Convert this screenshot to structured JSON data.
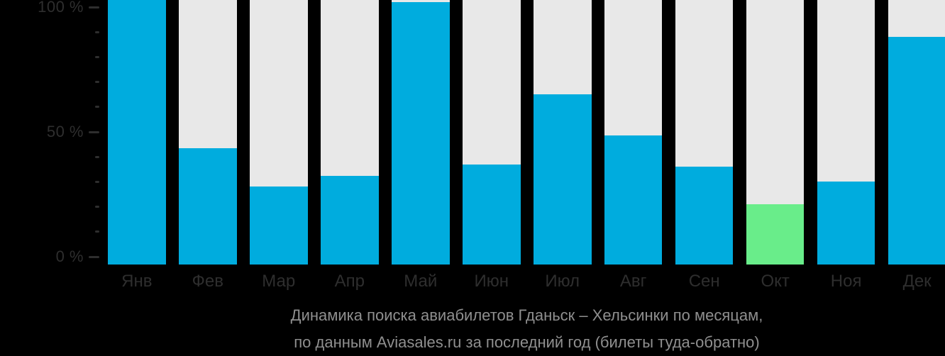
{
  "chart_data": {
    "type": "bar",
    "title": "Динамика поиска авиабилетов Гданьск – Хельсинки по месяцам,",
    "subtitle": "по данным Aviasales.ru за последний год (билеты туда-обратно)",
    "categories": [
      "Янв",
      "Фев",
      "Мар",
      "Апр",
      "Май",
      "Июн",
      "Июл",
      "Авг",
      "Сен",
      "Окт",
      "Ноя",
      "Дек"
    ],
    "values": [
      104,
      43.5,
      28,
      32.5,
      102,
      37,
      65,
      48.5,
      36,
      21,
      30,
      88
    ],
    "value_unit": "%",
    "highlight_index": 9,
    "xlabel": "",
    "ylabel": "",
    "ylim": [
      0,
      100
    ],
    "grid": "off",
    "legend": "none",
    "note": "Янв and Май bars are clipped at the top edge of the image; each bar sits on a full-height light track",
    "y_axis": {
      "major_ticks": [
        {
          "label": "100 %",
          "pct": 100
        },
        {
          "label": "50 %",
          "pct": 50
        },
        {
          "label": "0 %",
          "pct": 0
        }
      ],
      "minor_tick_pcts": [
        90,
        80,
        70,
        60,
        40,
        30,
        20,
        10
      ]
    },
    "colors": {
      "bar": "#00acde",
      "highlight": "#69ed8a",
      "track": "#e8e8e8",
      "background": "#000000",
      "axis_text": "#2e2e2e",
      "caption_text": "#8f8f8f"
    }
  },
  "caption": {
    "line1": "Динамика поиска авиабилетов Гданьск – Хельсинки по месяцам,",
    "line2": "по данным Aviasales.ru за последний год (билеты туда-обратно)"
  }
}
